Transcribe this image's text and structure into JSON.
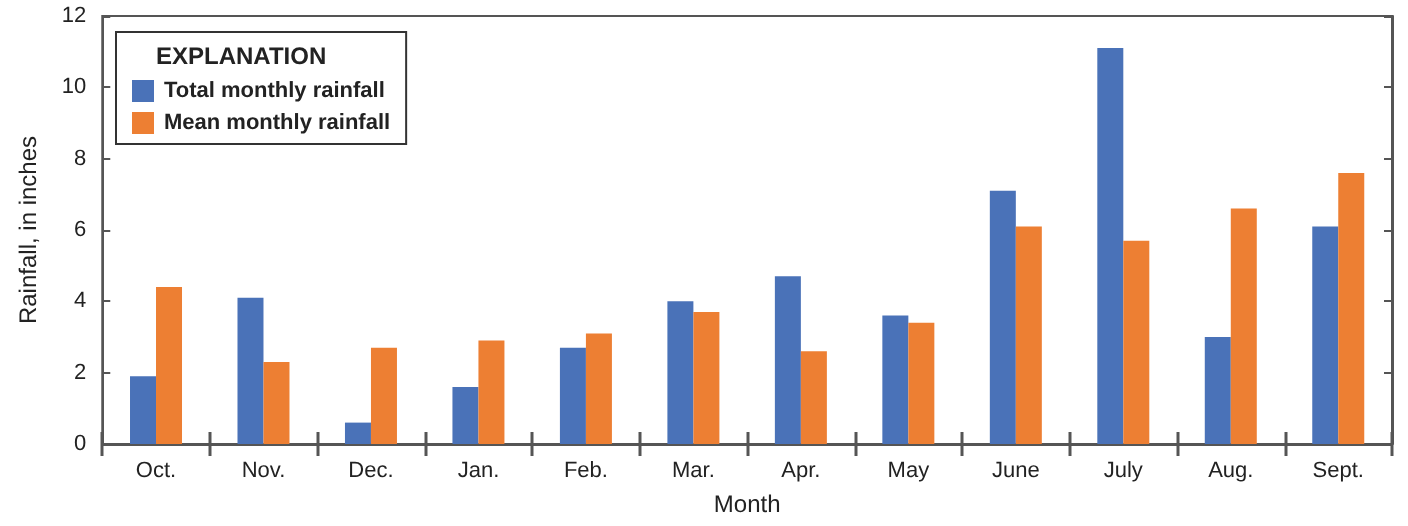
{
  "chart_data": {
    "type": "bar",
    "xlabel": "Month",
    "ylabel": "Rainfall, in inches",
    "legend_title": "EXPLANATION",
    "categories": [
      "Oct.",
      "Nov.",
      "Dec.",
      "Jan.",
      "Feb.",
      "Mar.",
      "Apr.",
      "May",
      "June",
      "July",
      "Aug.",
      "Sept."
    ],
    "series": [
      {
        "name": "Total monthly rainfall",
        "color": "#4a72b8",
        "values": [
          1.9,
          4.1,
          0.6,
          1.6,
          2.7,
          4.0,
          4.7,
          3.6,
          7.1,
          11.1,
          3.0,
          6.1
        ]
      },
      {
        "name": "Mean monthly rainfall",
        "color": "#ed7f33",
        "values": [
          4.4,
          2.3,
          2.7,
          2.9,
          3.1,
          3.7,
          2.6,
          3.4,
          6.1,
          5.7,
          6.6,
          7.6
        ]
      }
    ],
    "ylim": [
      0,
      12
    ],
    "yticks": [
      0,
      2,
      4,
      6,
      8,
      10,
      12
    ],
    "grid": false,
    "legend": "top left"
  }
}
